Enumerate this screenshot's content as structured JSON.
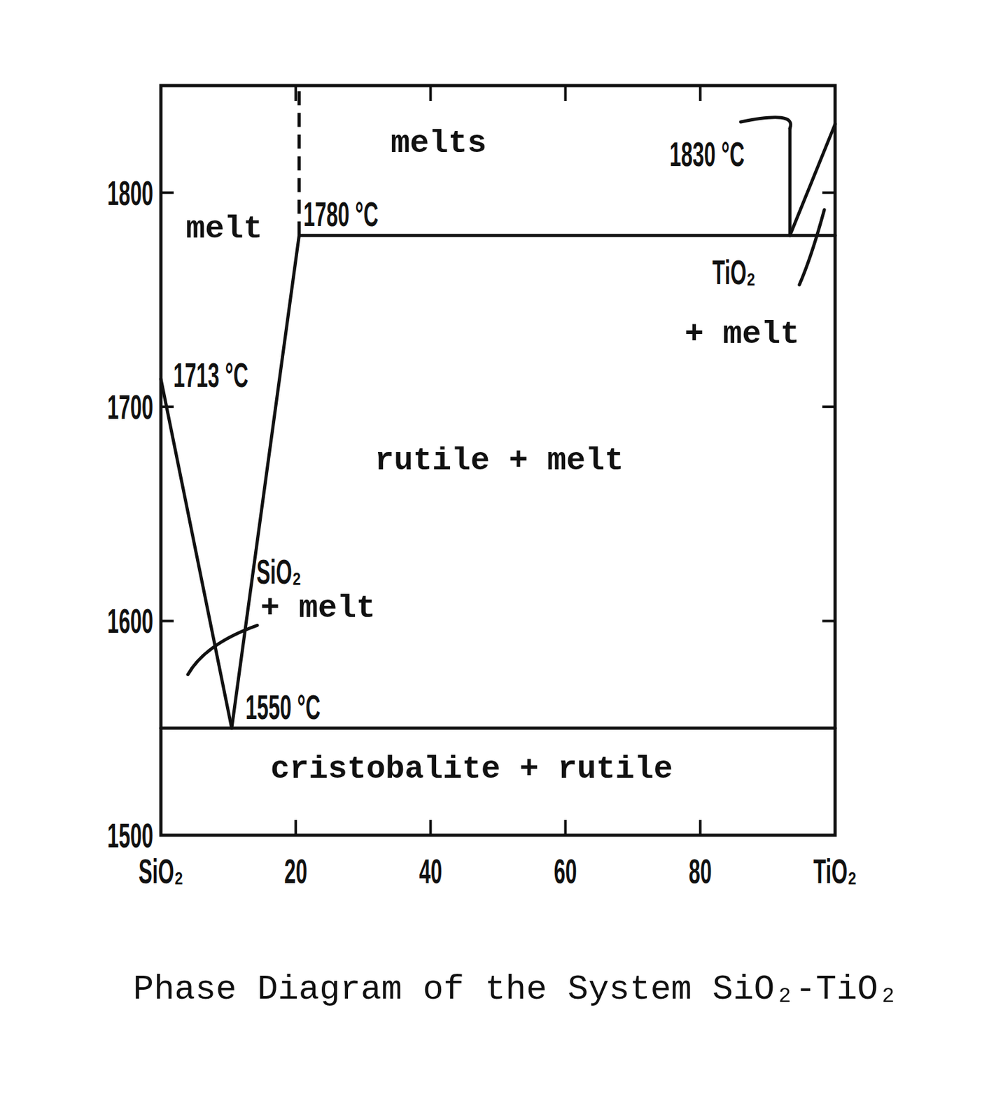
{
  "chart_data": {
    "type": "phase_diagram",
    "title": "Phase Diagram of the System SiO₂-TiO₂",
    "xlim": [
      0,
      100
    ],
    "xticks": [
      {
        "value": 0,
        "label": "SiO₂"
      },
      20,
      40,
      60,
      80,
      {
        "value": 100,
        "label": "TiO₂"
      }
    ],
    "ylim": [
      1500,
      1850
    ],
    "yticks": [
      1500,
      1600,
      1700,
      1800
    ],
    "lines": [
      {
        "x": [
          0,
          10.5
        ],
        "values": [
          1713,
          1550
        ],
        "line_style": "solid"
      },
      {
        "x": [
          10.5,
          20.5
        ],
        "values": [
          1550,
          1780
        ],
        "line_style": "solid"
      },
      {
        "x": [
          20.5,
          20.5
        ],
        "values": [
          1780,
          1850
        ],
        "line_style": "dashed"
      },
      {
        "x": [
          20.5,
          100
        ],
        "values": [
          1780,
          1780
        ],
        "line_style": "solid"
      },
      {
        "x": [
          0,
          100
        ],
        "values": [
          1550,
          1550
        ],
        "line_style": "solid"
      },
      {
        "x": [
          93.3,
          100
        ],
        "values": [
          1780,
          1832
        ],
        "line_style": "solid"
      },
      {
        "x": [
          93.3,
          93.3
        ],
        "values": [
          1780,
          1830
        ],
        "line_style": "solid"
      }
    ],
    "leaders": [
      {
        "x": [
          93.3,
          92,
          86
        ],
        "values": [
          1830,
          1835,
          1833
        ]
      },
      {
        "x": [
          94.7,
          96.5,
          98.4
        ],
        "values": [
          1757,
          1772,
          1792
        ]
      },
      {
        "x": [
          4,
          7.9,
          14.3
        ],
        "values": [
          1575,
          1588,
          1598
        ]
      }
    ],
    "point_labels": [
      {
        "text": "1780 °C",
        "x": 26.7,
        "y": 1790
      },
      {
        "text": "1713 °C",
        "x": 7.4,
        "y": 1715
      },
      {
        "text": "1550 °C",
        "x": 18.1,
        "y": 1560
      },
      {
        "text": "1830 °C",
        "x": 81,
        "y": 1818
      },
      {
        "text": "SiO₂",
        "x": 17.5,
        "y": 1623
      },
      {
        "text": "TiO₂",
        "x": 85,
        "y": 1763
      }
    ],
    "region_labels": [
      {
        "text": "melts",
        "x": 41.2,
        "y": 1823
      },
      {
        "text": "melt",
        "x": 9.4,
        "y": 1783
      },
      {
        "text": "rutile + melt",
        "x": 50.2,
        "y": 1675
      },
      {
        "text": "+ melt",
        "x": 23.3,
        "y": 1606
      },
      {
        "text": "+ melt",
        "x": 86.2,
        "y": 1734
      },
      {
        "text": "cristobalite + rutile",
        "x": 46.1,
        "y": 1531
      }
    ]
  }
}
